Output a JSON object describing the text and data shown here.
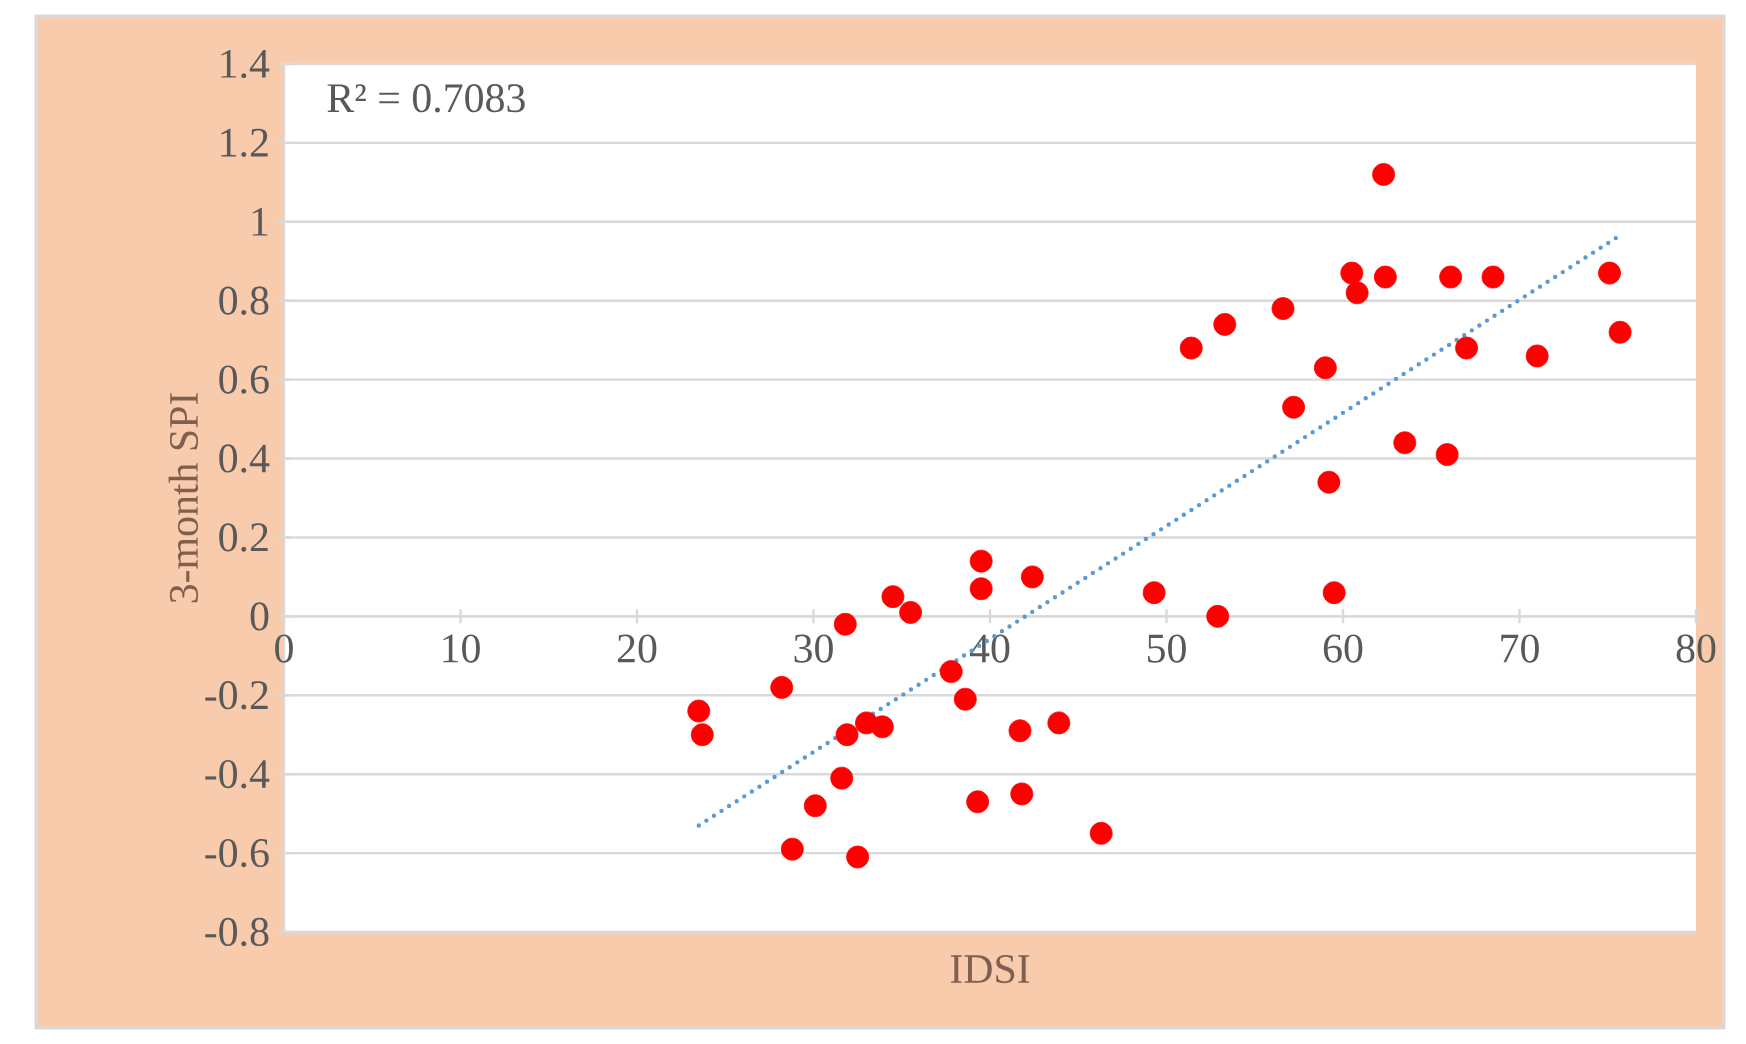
{
  "chart_data": {
    "type": "scatter",
    "xlabel": "IDSI",
    "ylabel": "3-month SPI",
    "annotations": [
      "R² = 0.7083"
    ],
    "xlim": [
      0,
      80
    ],
    "xticks": [
      0,
      10,
      20,
      30,
      40,
      50,
      60,
      70,
      80
    ],
    "ylim": [
      -0.8,
      1.4
    ],
    "yticks": [
      -0.8,
      -0.6,
      -0.4,
      -0.2,
      0,
      0.2,
      0.4,
      0.6,
      0.8,
      1,
      1.2,
      1.4
    ],
    "grid": "y",
    "series": [
      {
        "type": "scatter",
        "color": "#ff0000",
        "marker": "circle",
        "x": [
          23.5,
          23.7,
          28.2,
          28.8,
          30.1,
          31.8,
          31.6,
          31.9,
          32.5,
          33.0,
          33.9,
          34.5,
          35.5,
          37.8,
          38.6,
          39.5,
          39.5,
          39.3,
          42.4,
          41.7,
          41.8,
          43.9,
          46.3,
          49.3,
          52.9,
          59.5,
          59.2,
          57.2,
          59.0,
          51.4,
          53.3,
          56.6,
          60.5,
          60.8,
          62.4,
          62.3,
          63.5,
          65.9,
          66.1,
          67.0,
          68.5,
          71.0,
          75.1,
          75.7
        ],
        "values": [
          -0.24,
          -0.3,
          -0.18,
          -0.59,
          -0.48,
          -0.02,
          -0.41,
          -0.3,
          -0.61,
          -0.27,
          -0.28,
          0.05,
          0.01,
          -0.14,
          -0.21,
          0.14,
          0.07,
          -0.47,
          0.1,
          -0.29,
          -0.45,
          -0.27,
          -0.55,
          0.06,
          0.0,
          0.06,
          0.34,
          0.53,
          0.63,
          0.68,
          0.74,
          0.78,
          0.87,
          0.82,
          0.86,
          1.12,
          0.44,
          0.41,
          0.86,
          0.68,
          0.86,
          0.66,
          0.87,
          0.72
        ]
      },
      {
        "type": "line",
        "color": "#5b9bd5",
        "line_style": "dotted",
        "marker": "none",
        "x": [
          23.5,
          75.5
        ],
        "values": [
          -0.53,
          0.96
        ]
      }
    ]
  }
}
